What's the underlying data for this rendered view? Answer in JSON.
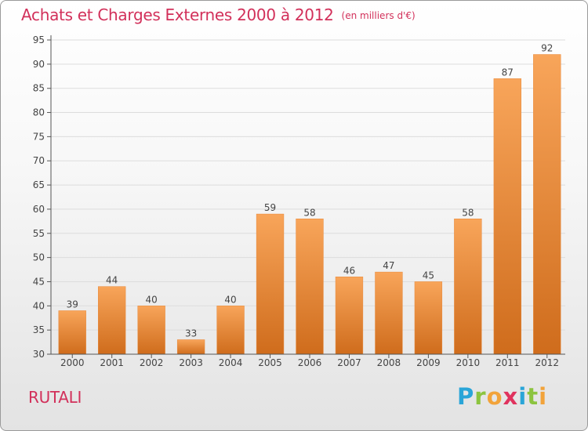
{
  "header": {
    "title": "Achats et Charges Externes 2000 à 2012",
    "unit": "(en milliers d'€)"
  },
  "footer": {
    "commune": "RUTALI",
    "brand": "Proxiti",
    "brand_letter_colors": [
      "#2aa5d8",
      "#8cc43f",
      "#f2a33a",
      "#e0335e",
      "#2aa5d8",
      "#8cc43f",
      "#f2a33a"
    ]
  },
  "colors": {
    "accent_text": "#d2305a",
    "bar_light": "#f8a55a",
    "bar_dark": "#cf6c1c",
    "grid": "#dddddd",
    "axis": "#555555"
  },
  "chart_data": {
    "type": "bar",
    "categories": [
      "2000",
      "2001",
      "2002",
      "2003",
      "2004",
      "2005",
      "2006",
      "2007",
      "2008",
      "2009",
      "2010",
      "2011",
      "2012"
    ],
    "values": [
      39,
      44,
      40,
      33,
      40,
      59,
      58,
      46,
      47,
      45,
      58,
      87,
      92
    ],
    "ylim": [
      30,
      95
    ],
    "yticks": [
      "30",
      "35",
      "40",
      "45",
      "50",
      "55",
      "60",
      "65",
      "70",
      "75",
      "80",
      "85",
      "90",
      "95"
    ],
    "grid": true,
    "xlabel": "",
    "ylabel": ""
  }
}
